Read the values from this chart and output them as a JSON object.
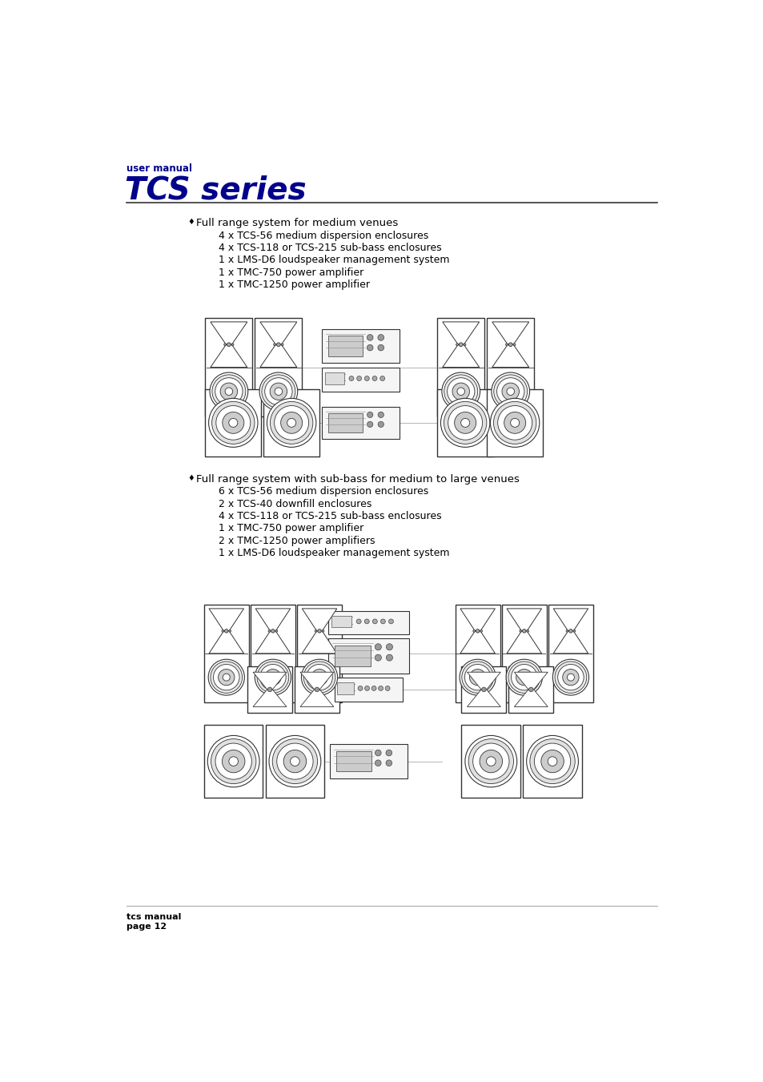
{
  "background_color": "#ffffff",
  "header_label": "user manual",
  "header_title": "TCS series",
  "header_color": "#00008B",
  "header_line_color": "#000080",
  "section1_bullet": "♦",
  "section1_title": "Full range system for medium venues",
  "section1_items": [
    "4 x TCS-56 medium dispersion enclosures",
    "4 x TCS-118 or TCS-215 sub-bass enclosures",
    "1 x LMS-D6 loudspeaker management system",
    "1 x TMC-750 power amplifier",
    "1 x TMC-1250 power amplifier"
  ],
  "section2_bullet": "♦",
  "section2_title": "Full range system with sub-bass for medium to large venues",
  "section2_items": [
    "6 x TCS-56 medium dispersion enclosures",
    "2 x TCS-40 downfill enclosures",
    "4 x TCS-118 or TCS-215 sub-bass enclosures",
    "1 x TMC-750 power amplifier",
    "2 x TMC-1250 power amplifiers",
    "1 x LMS-D6 loudspeaker management system"
  ],
  "footer_line1": "tcs manual",
  "footer_line2": "page 12",
  "text_color": "#000000",
  "footer_color": "#000000"
}
